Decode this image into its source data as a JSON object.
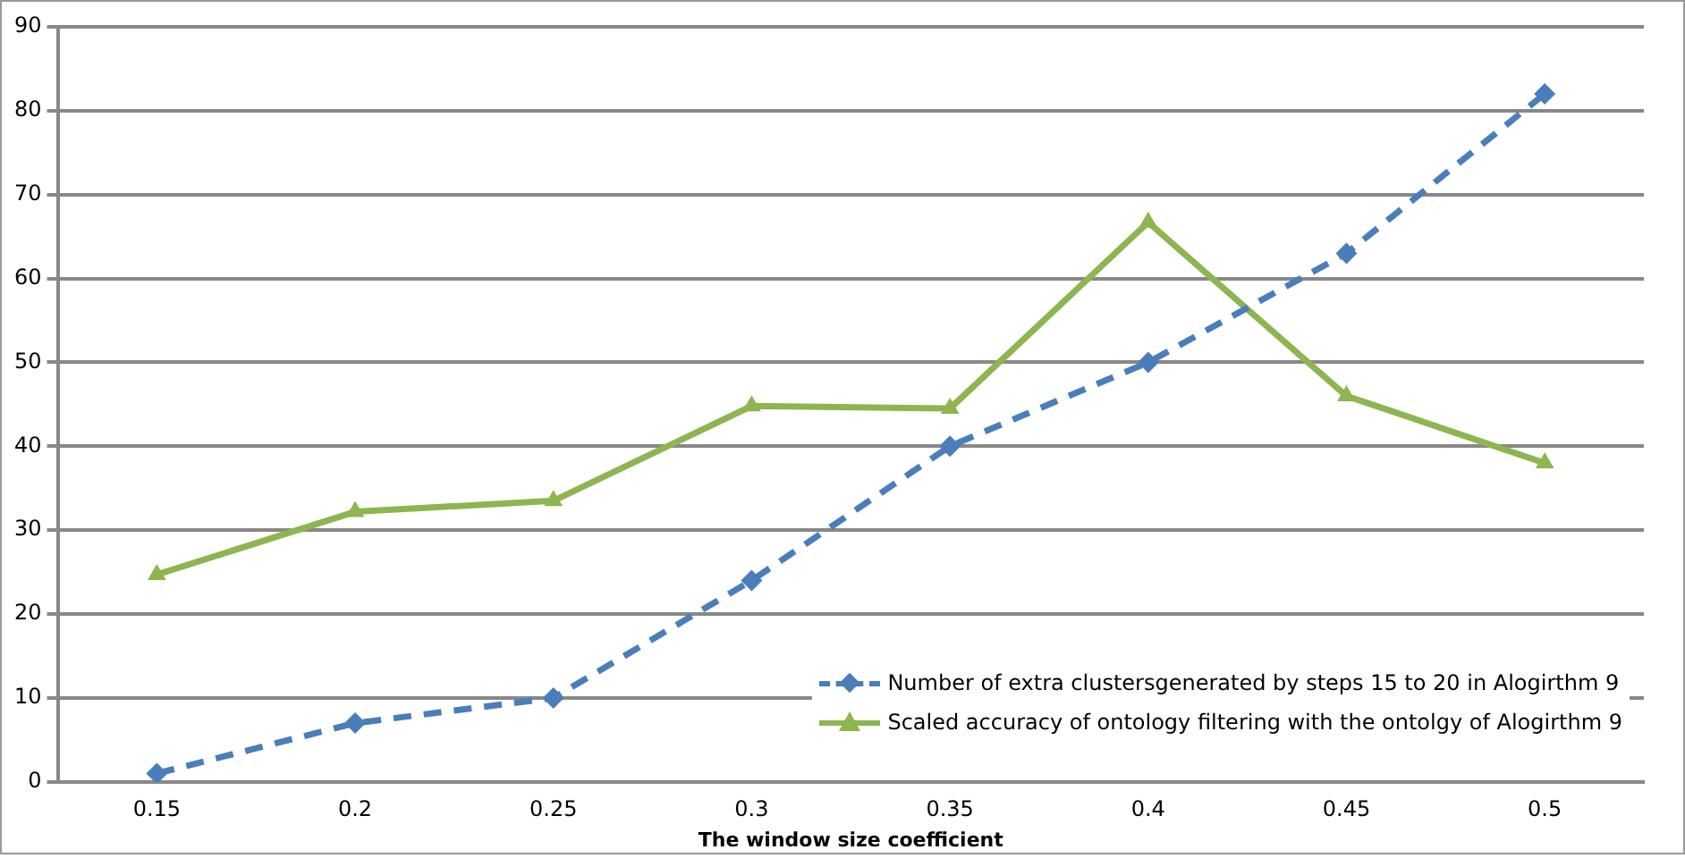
{
  "chart_data": {
    "type": "line",
    "xlabel": "The window size coefficient",
    "categories": [
      "0.15",
      "0.2",
      "0.25",
      "0.3",
      "0.35",
      "0.4",
      "0.45",
      "0.5"
    ],
    "series": [
      {
        "name": "Number of extra clustersgenerated  by steps 15 to 20 in Alogirthm 9",
        "color": "#4a7ebb",
        "marker": "diamond",
        "line_style": "dashed",
        "values": [
          1,
          7,
          10,
          24,
          40,
          50,
          63,
          82
        ]
      },
      {
        "name": "Scaled accuracy of ontology filtering with the ontolgy of Alogirthm 9",
        "color": "#8db550",
        "marker": "triangle",
        "line_style": "solid",
        "values": [
          24.7,
          32.2,
          33.5,
          44.8,
          44.5,
          66.7,
          46,
          38
        ]
      }
    ],
    "ylim": [
      0,
      90
    ],
    "yticks": [
      0,
      10,
      20,
      30,
      40,
      50,
      60,
      70,
      80,
      90
    ],
    "grid": "y",
    "legend": "bottom right"
  }
}
